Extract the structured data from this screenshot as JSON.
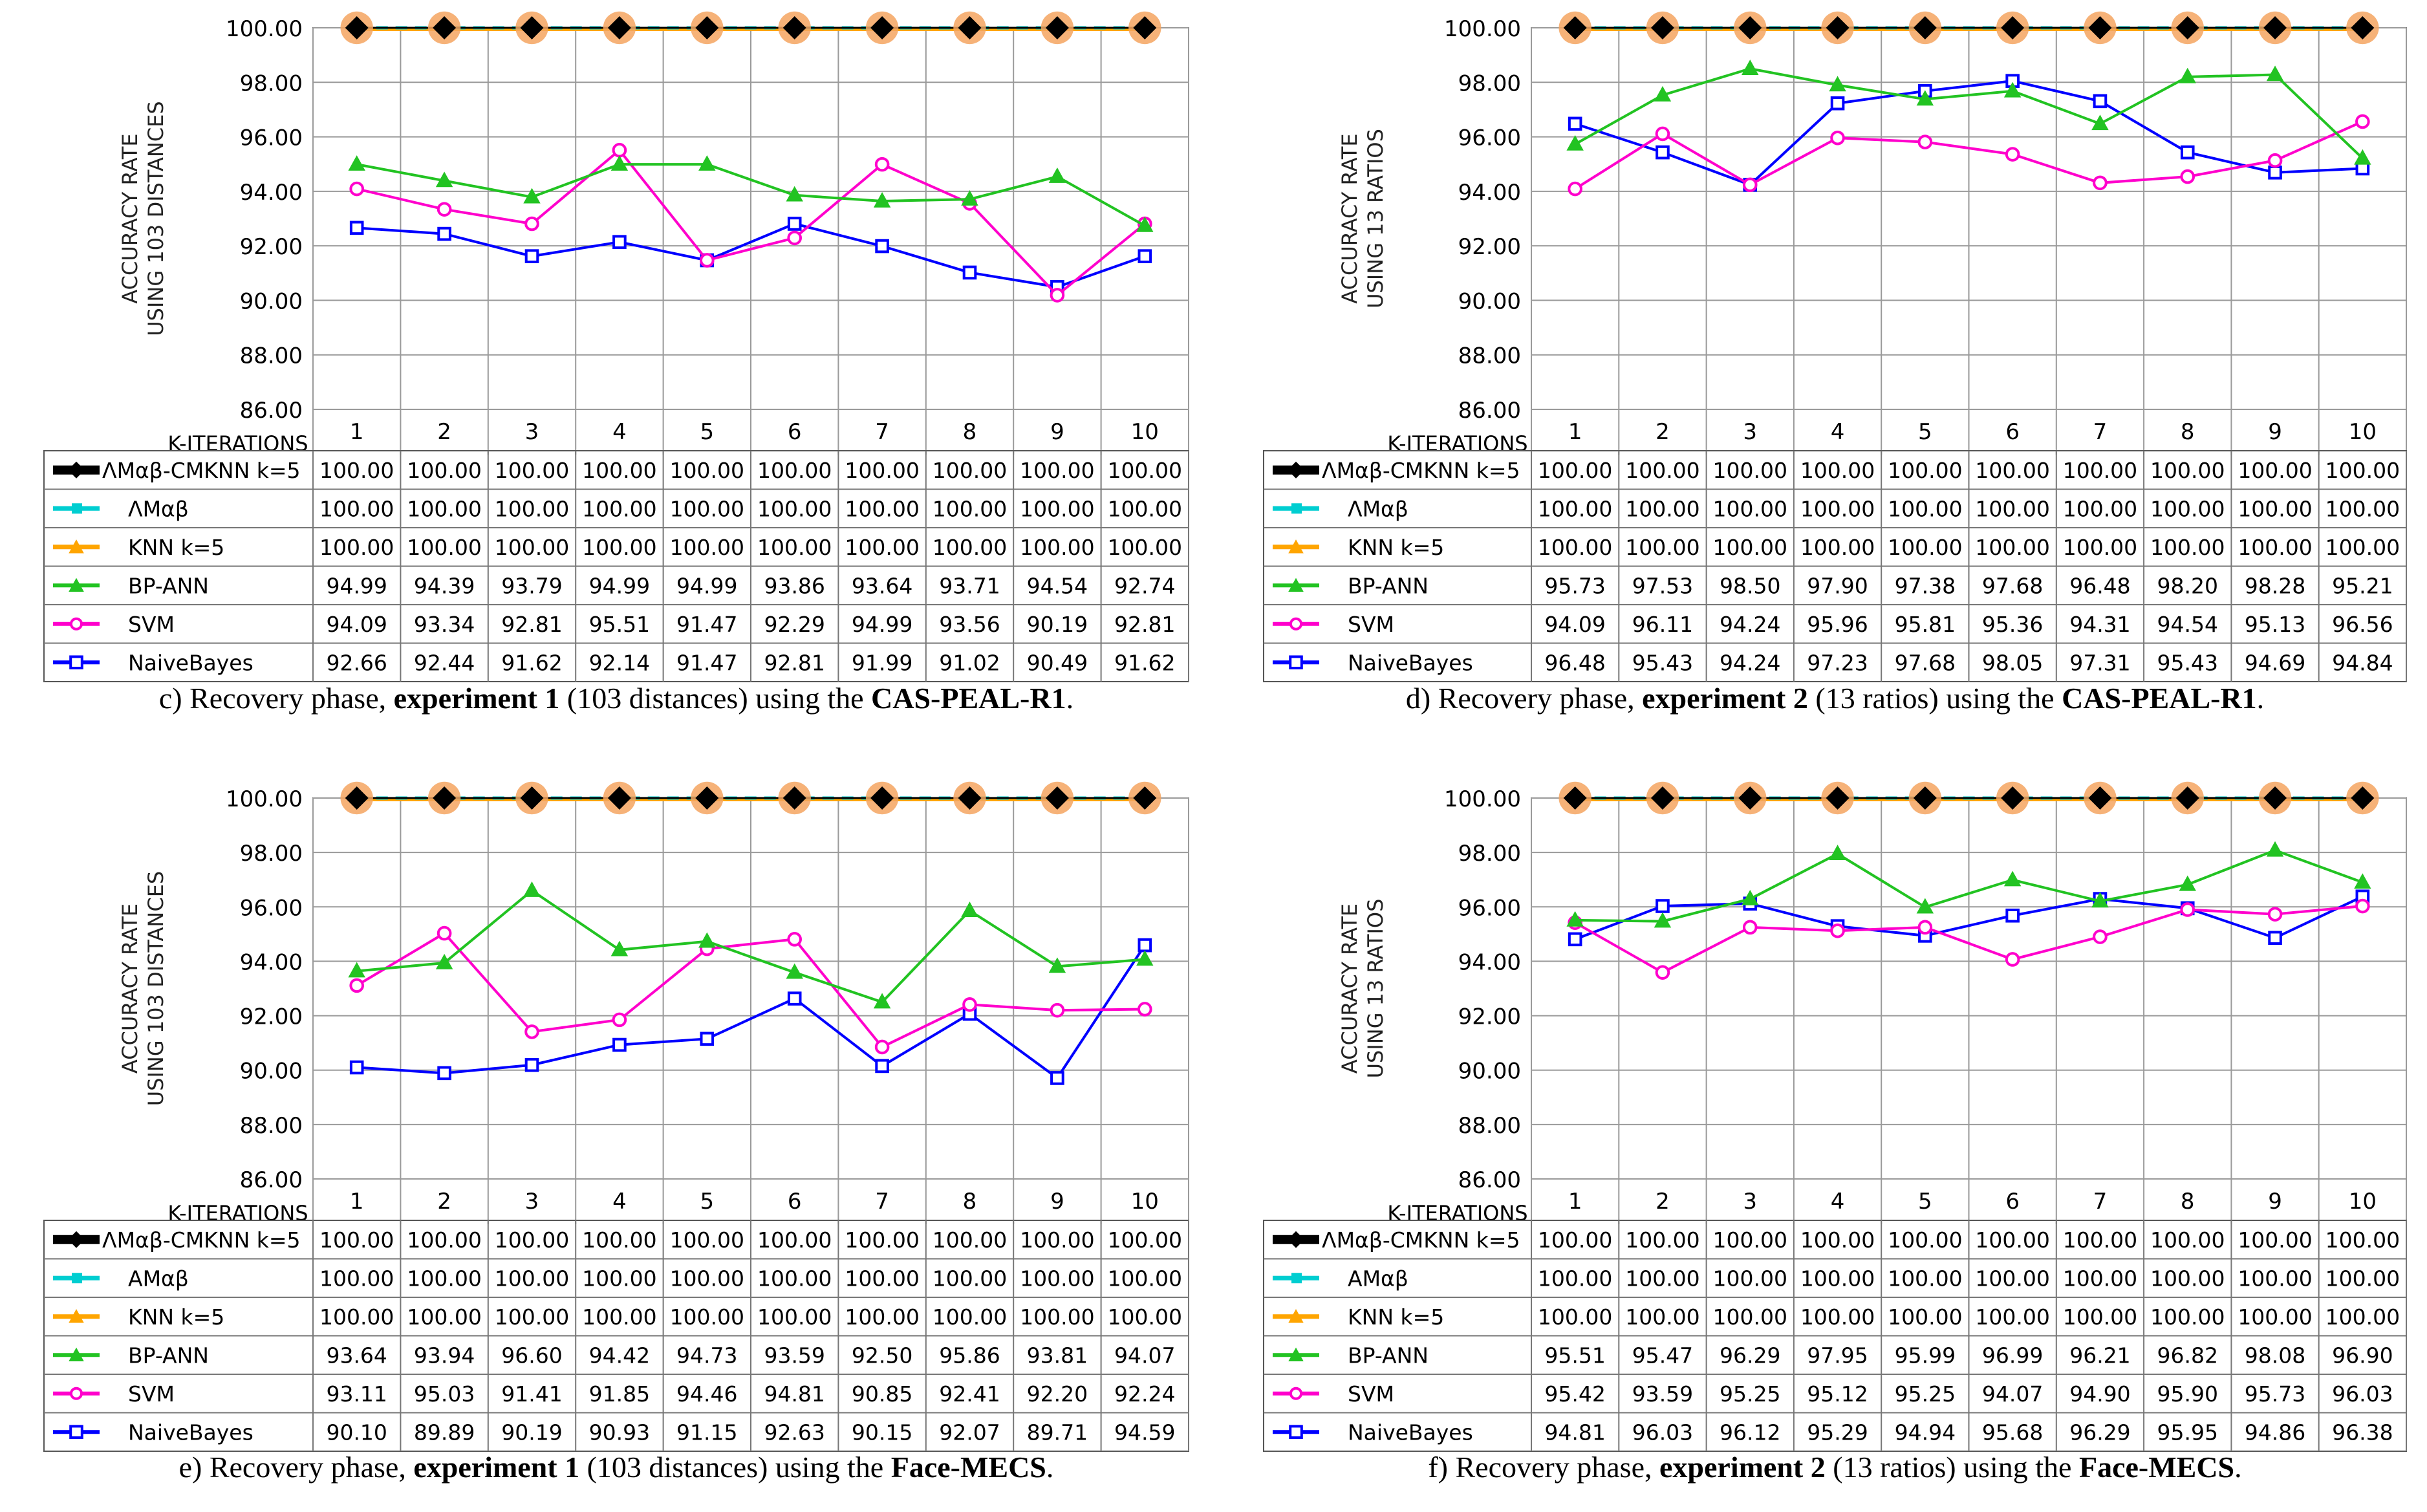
{
  "colors": {
    "AMab-CMKNN": "#000000",
    "AMab": "#00CED1",
    "KNN": "#FFA500",
    "BP-ANN": "#22C322",
    "SVM": "#FF00CC",
    "NaiveBayes": "#0000FF",
    "grid": "#404040",
    "marker_halo": "#F4A460"
  },
  "chart_data": [
    {
      "id": "c",
      "type": "line",
      "ylabel": [
        "ACCURACY RATE",
        "USING 103 DISTANCES"
      ],
      "xlabel": "K-ITERATIONS",
      "categories": [
        "1",
        "2",
        "3",
        "4",
        "5",
        "6",
        "7",
        "8",
        "9",
        "10"
      ],
      "ylim": [
        86,
        100
      ],
      "yticks": [
        "100.00",
        "98.00",
        "96.00",
        "94.00",
        "92.00",
        "90.00",
        "88.00",
        "86.00"
      ],
      "caption": {
        "pre": "c) Recovery phase, ",
        "b1": "experiment 1",
        "mid": " (103 distances) using the ",
        "b2": "CAS-PEAL-R1",
        "post": "."
      },
      "series": [
        {
          "name": "AMab-CMKNN",
          "label": "ΛMαβ-CMKNN k=5",
          "labels": [
            "100.00",
            "100.00",
            "100.00",
            "100.00",
            "100.00",
            "100.00",
            "100.00",
            "100.00",
            "100.00",
            "100.00"
          ]
        },
        {
          "name": "AMab",
          "label": "ΛMαβ",
          "labels": [
            "100.00",
            "100.00",
            "100.00",
            "100.00",
            "100.00",
            "100.00",
            "100.00",
            "100.00",
            "100.00",
            "100.00"
          ]
        },
        {
          "name": "KNN",
          "label": "KNN  k=5",
          "labels": [
            "100.00",
            "100.00",
            "100.00",
            "100.00",
            "100.00",
            "100.00",
            "100.00",
            "100.00",
            "100.00",
            "100.00"
          ]
        },
        {
          "name": "BP-ANN",
          "label": "BP-ANN",
          "labels": [
            "94.99",
            "94.39",
            "93.79",
            "94.99",
            "94.99",
            "93.86",
            "93.64",
            "93.71",
            "94.54",
            "92.74"
          ]
        },
        {
          "name": "SVM",
          "label": "SVM",
          "labels": [
            "94.09",
            "93.34",
            "92.81",
            "95.51",
            "91.47",
            "92.29",
            "94.99",
            "93.56",
            "90.19",
            "92.81"
          ]
        },
        {
          "name": "NaiveBayes",
          "label": "NaiveBayes",
          "labels": [
            "92.66",
            "92.44",
            "91.62",
            "92.14",
            "91.47",
            "92.81",
            "91.99",
            "91.02",
            "90.49",
            "91.62"
          ]
        }
      ]
    },
    {
      "id": "d",
      "type": "line",
      "ylabel": [
        "ACCURACY RATE",
        "USING 13 RATIOS"
      ],
      "xlabel": "K-ITERATIONS",
      "categories": [
        "1",
        "2",
        "3",
        "4",
        "5",
        "6",
        "7",
        "8",
        "9",
        "10"
      ],
      "ylim": [
        86,
        100
      ],
      "yticks": [
        "100.00",
        "98.00",
        "96.00",
        "94.00",
        "92.00",
        "90.00",
        "88.00",
        "86.00"
      ],
      "caption": {
        "pre": "d) Recovery phase, ",
        "b1": "experiment 2",
        "mid": " (13 ratios) using the ",
        "b2": "CAS-PEAL-R1",
        "post": "."
      },
      "series": [
        {
          "name": "AMab-CMKNN",
          "label": "ΛMαβ-CMKNN k=5",
          "labels": [
            "100.00",
            "100.00",
            "100.00",
            "100.00",
            "100.00",
            "100.00",
            "100.00",
            "100.00",
            "100.00",
            "100.00"
          ]
        },
        {
          "name": "AMab",
          "label": "ΛMαβ",
          "labels": [
            "100.00",
            "100.00",
            "100.00",
            "100.00",
            "100.00",
            "100.00",
            "100.00",
            "100.00",
            "100.00",
            "100.00"
          ]
        },
        {
          "name": "KNN",
          "label": "KNN  k=5",
          "labels": [
            "100.00",
            "100.00",
            "100.00",
            "100.00",
            "100.00",
            "100.00",
            "100.00",
            "100.00",
            "100.00",
            "100.00"
          ]
        },
        {
          "name": "BP-ANN",
          "label": "BP-ANN",
          "labels": [
            "95.73",
            "97.53",
            "98.50",
            "97.90",
            "97.38",
            "97.68",
            "96.48",
            "98.20",
            "98.28",
            "95.21"
          ]
        },
        {
          "name": "SVM",
          "label": "SVM",
          "labels": [
            "94.09",
            "96.11",
            "94.24",
            "95.96",
            "95.81",
            "95.36",
            "94.31",
            "94.54",
            "95.13",
            "96.56"
          ]
        },
        {
          "name": "NaiveBayes",
          "label": "NaiveBayes",
          "labels": [
            "96.48",
            "95.43",
            "94.24",
            "97.23",
            "97.68",
            "98.05",
            "97.31",
            "95.43",
            "94.69",
            "94.84"
          ]
        }
      ]
    },
    {
      "id": "e",
      "type": "line",
      "ylabel": [
        "ACCURACY RATE",
        "USING 103 DISTANCES"
      ],
      "xlabel": "K-ITERATIONS",
      "categories": [
        "1",
        "2",
        "3",
        "4",
        "5",
        "6",
        "7",
        "8",
        "9",
        "10"
      ],
      "ylim": [
        86,
        100
      ],
      "yticks": [
        "100.00",
        "98.00",
        "96.00",
        "94.00",
        "92.00",
        "90.00",
        "88.00",
        "86.00"
      ],
      "caption": {
        "pre": "e) Recovery phase, ",
        "b1": "experiment 1",
        "mid": " (103 distances) using the ",
        "b2": "Face-MECS",
        "post": "."
      },
      "series": [
        {
          "name": "AMab-CMKNN",
          "label": "ΛMαβ-CMKNN k=5",
          "labels": [
            "100.00",
            "100.00",
            "100.00",
            "100.00",
            "100.00",
            "100.00",
            "100.00",
            "100.00",
            "100.00",
            "100.00"
          ]
        },
        {
          "name": "AMab",
          "label": "AMαβ",
          "labels": [
            "100.00",
            "100.00",
            "100.00",
            "100.00",
            "100.00",
            "100.00",
            "100.00",
            "100.00",
            "100.00",
            "100.00"
          ]
        },
        {
          "name": "KNN",
          "label": "KNN  k=5",
          "labels": [
            "100.00",
            "100.00",
            "100.00",
            "100.00",
            "100.00",
            "100.00",
            "100.00",
            "100.00",
            "100.00",
            "100.00"
          ]
        },
        {
          "name": "BP-ANN",
          "label": "BP-ANN",
          "labels": [
            "93.64",
            "93.94",
            "96.60",
            "94.42",
            "94.73",
            "93.59",
            "92.50",
            "95.86",
            "93.81",
            "94.07"
          ]
        },
        {
          "name": "SVM",
          "label": "SVM",
          "labels": [
            "93.11",
            "95.03",
            "91.41",
            "91.85",
            "94.46",
            "94.81",
            "90.85",
            "92.41",
            "92.20",
            "92.24"
          ]
        },
        {
          "name": "NaiveBayes",
          "label": "NaiveBayes",
          "labels": [
            "90.10",
            "89.89",
            "90.19",
            "90.93",
            "91.15",
            "92.63",
            "90.15",
            "92.07",
            "89.71",
            "94.59"
          ]
        }
      ]
    },
    {
      "id": "f",
      "type": "line",
      "ylabel": [
        "ACCURACY RATE",
        "USING 13 RATIOS"
      ],
      "xlabel": "K-ITERATIONS",
      "categories": [
        "1",
        "2",
        "3",
        "4",
        "5",
        "6",
        "7",
        "8",
        "9",
        "10"
      ],
      "ylim": [
        86,
        100
      ],
      "yticks": [
        "100.00",
        "98.00",
        "96.00",
        "94.00",
        "92.00",
        "90.00",
        "88.00",
        "86.00"
      ],
      "caption": {
        "pre": "f) Recovery phase, ",
        "b1": "experiment 2",
        "mid": " (13 ratios) using the ",
        "b2": "Face-MECS",
        "post": "."
      },
      "series": [
        {
          "name": "AMab-CMKNN",
          "label": "ΛMαβ-CMKNN k=5",
          "labels": [
            "100.00",
            "100.00",
            "100.00",
            "100.00",
            "100.00",
            "100.00",
            "100.00",
            "100.00",
            "100.00",
            "100.00"
          ]
        },
        {
          "name": "AMab",
          "label": "AMαβ",
          "labels": [
            "100.00",
            "100.00",
            "100.00",
            "100.00",
            "100.00",
            "100.00",
            "100.00",
            "100.00",
            "100.00",
            "100.00"
          ]
        },
        {
          "name": "KNN",
          "label": "KNN  k=5",
          "labels": [
            "100.00",
            "100.00",
            "100.00",
            "100.00",
            "100.00",
            "100.00",
            "100.00",
            "100.00",
            "100.00",
            "100.00"
          ]
        },
        {
          "name": "BP-ANN",
          "label": "BP-ANN",
          "labels": [
            "95.51",
            "95.47",
            "96.29",
            "97.95",
            "95.99",
            "96.99",
            "96.21",
            "96.82",
            "98.08",
            "96.90"
          ]
        },
        {
          "name": "SVM",
          "label": "SVM",
          "labels": [
            "95.42",
            "93.59",
            "95.25",
            "95.12",
            "95.25",
            "94.07",
            "94.90",
            "95.90",
            "95.73",
            "96.03"
          ]
        },
        {
          "name": "NaiveBayes",
          "label": "NaiveBayes",
          "labels": [
            "94.81",
            "96.03",
            "96.12",
            "95.29",
            "94.94",
            "95.68",
            "96.29",
            "95.95",
            "94.86",
            "96.38"
          ]
        }
      ]
    }
  ]
}
